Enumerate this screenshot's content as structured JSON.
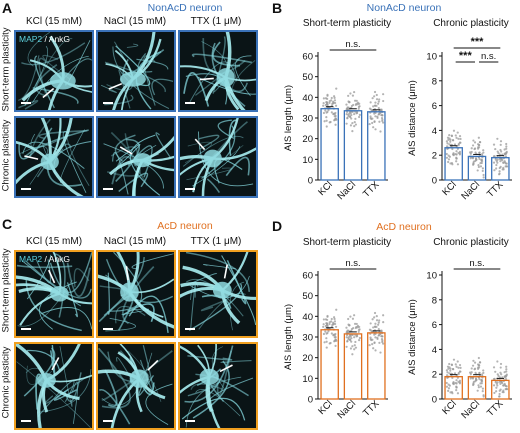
{
  "panels": {
    "A": {
      "letter": "A",
      "title": "NonAcD neuron",
      "title_color": "#3a72b8",
      "frame_color": "#3a72b8",
      "conditions": [
        "KCl (15 mM)",
        "NaCl (15 mM)",
        "TTX (1 μM)"
      ],
      "rows": [
        "Short-term plasticity",
        "Chronic plasticity"
      ],
      "stain_marker": "MAP2",
      "stain_sep": " / ",
      "stain_target": "AnkG"
    },
    "B": {
      "letter": "B",
      "title": "NonAcD neuron",
      "title_color": "#3a72b8"
    },
    "C": {
      "letter": "C",
      "title": "AcD neuron",
      "title_color": "#e07020",
      "frame_color": "#f0a020",
      "conditions": [
        "KCl (15 mM)",
        "NaCl (15 mM)",
        "TTX (1 μM)"
      ],
      "rows": [
        "Short-term plasticity",
        "Chronic plasticity"
      ],
      "stain_marker": "MAP2",
      "stain_sep": " / ",
      "stain_target": "AnkG"
    },
    "D": {
      "letter": "D",
      "title": "AcD neuron",
      "title_color": "#e07020"
    }
  },
  "chart_data": [
    {
      "id": "B-short",
      "type": "bar",
      "title": "Short-term plasticity",
      "bar_color": "#3a72b8",
      "categories": [
        "KCl",
        "NaCl",
        "TTX"
      ],
      "values": [
        34.5,
        33.5,
        33.0
      ],
      "ylabel": "AIS length (μm)",
      "ylim": [
        0,
        60
      ],
      "yticks": [
        0,
        10,
        20,
        30,
        40,
        50,
        60
      ],
      "significance": [
        {
          "between": [
            "KCl",
            "TTX"
          ],
          "label": "n.s."
        }
      ]
    },
    {
      "id": "B-chronic",
      "type": "bar",
      "title": "Chronic plasticity",
      "bar_color": "#3a72b8",
      "categories": [
        "KCl",
        "NaCl",
        "TTX"
      ],
      "values": [
        2.6,
        1.9,
        1.8
      ],
      "ylabel": "AIS distance (μm)",
      "ylim": [
        0,
        10
      ],
      "yticks": [
        0,
        2,
        4,
        6,
        8,
        10
      ],
      "significance": [
        {
          "between": [
            "KCl",
            "TTX"
          ],
          "label": "***"
        },
        {
          "between": [
            "KCl",
            "NaCl"
          ],
          "label": "***"
        },
        {
          "between": [
            "NaCl",
            "TTX"
          ],
          "label": "n.s."
        }
      ]
    },
    {
      "id": "D-short",
      "type": "bar",
      "title": "Short-term plasticity",
      "bar_color": "#e07020",
      "categories": [
        "KCl",
        "NaCl",
        "TTX"
      ],
      "values": [
        33.5,
        31.5,
        32.0
      ],
      "ylabel": "AIS length (μm)",
      "ylim": [
        0,
        60
      ],
      "yticks": [
        0,
        10,
        20,
        30,
        40,
        50,
        60
      ],
      "significance": [
        {
          "between": [
            "KCl",
            "TTX"
          ],
          "label": "n.s."
        }
      ]
    },
    {
      "id": "D-chronic",
      "type": "bar",
      "title": "Chronic plasticity",
      "bar_color": "#e07020",
      "categories": [
        "KCl",
        "NaCl",
        "TTX"
      ],
      "values": [
        1.8,
        1.8,
        1.5
      ],
      "ylabel": "AIS distance (μm)",
      "ylim": [
        0,
        10
      ],
      "yticks": [
        0,
        2,
        4,
        6,
        8,
        10
      ],
      "significance": [
        {
          "between": [
            "KCl",
            "TTX"
          ],
          "label": "n.s."
        }
      ]
    }
  ]
}
